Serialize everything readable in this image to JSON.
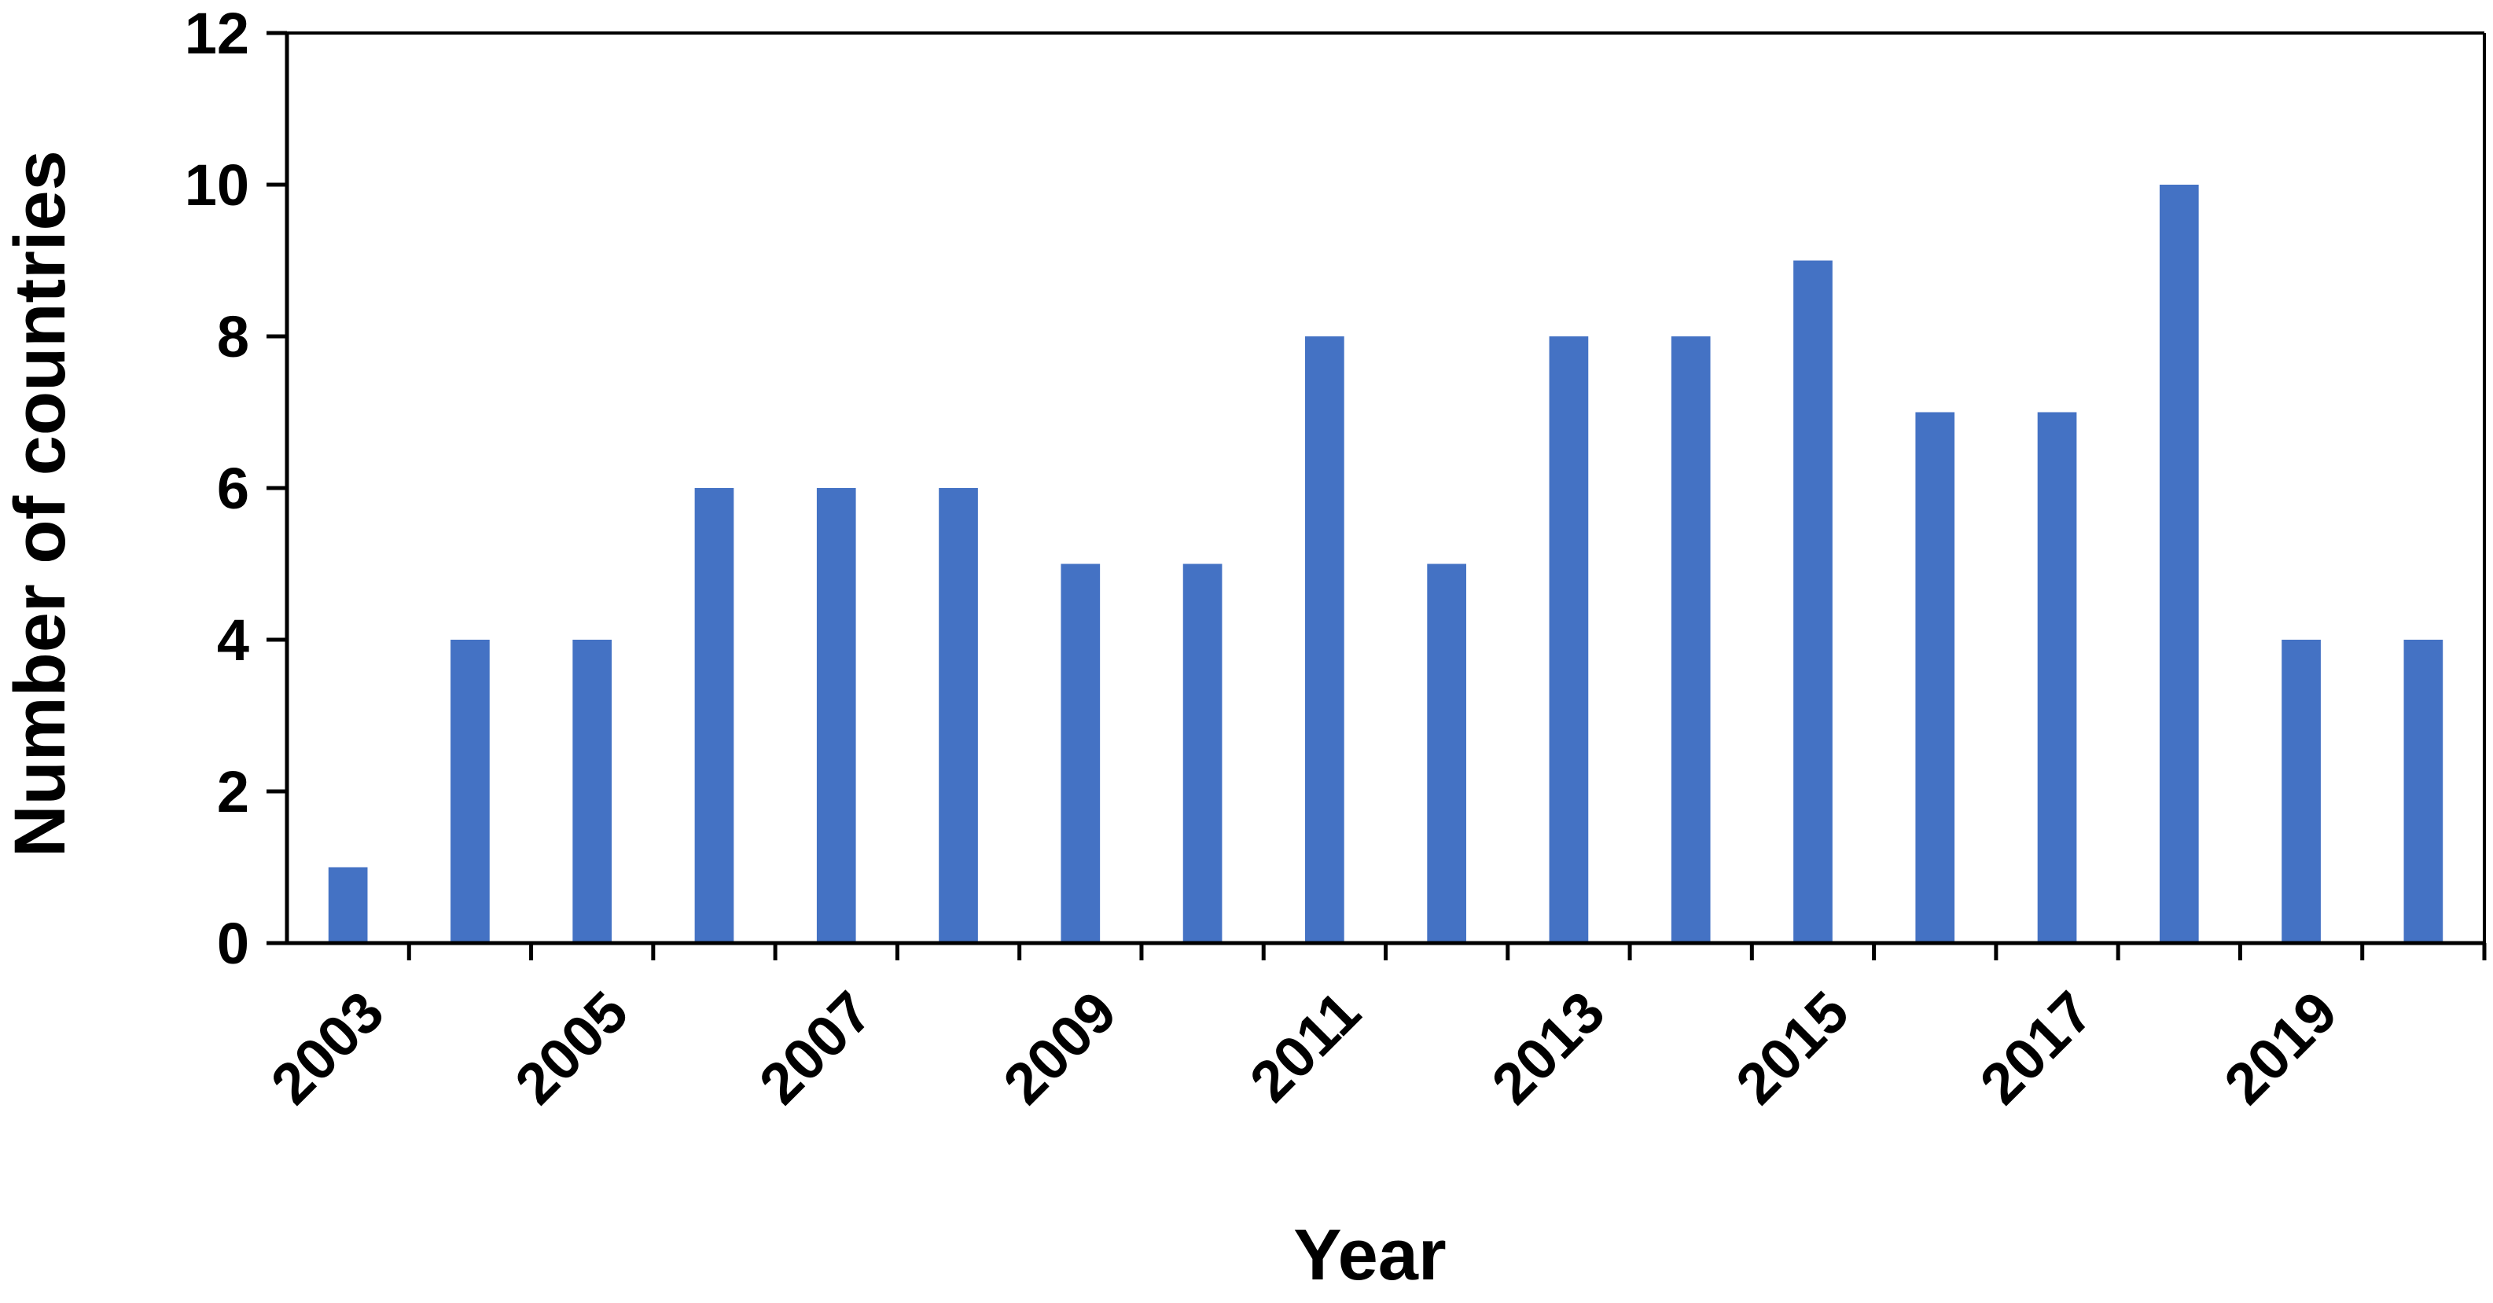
{
  "chart_data": {
    "type": "bar",
    "title": "",
    "xlabel": "Year",
    "ylabel": "Number of countries",
    "categories": [
      "2003",
      "2004",
      "2005",
      "2006",
      "2007",
      "2008",
      "2009",
      "2010",
      "2011",
      "2012",
      "2013",
      "2014",
      "2015",
      "2016",
      "2017",
      "2018",
      "2019",
      "2020"
    ],
    "x_tick_labels": [
      "2003",
      "2005",
      "2007",
      "2009",
      "2011",
      "2013",
      "2015",
      "2017",
      "2019"
    ],
    "values": [
      1,
      4,
      4,
      6,
      6,
      6,
      5,
      5,
      8,
      5,
      8,
      8,
      9,
      7,
      7,
      10,
      4,
      4
    ],
    "ylim": [
      0,
      12
    ],
    "yticks": [
      "0",
      "2",
      "4",
      "6",
      "8",
      "10",
      "12"
    ],
    "bar_color": "#4472C4",
    "grid": false,
    "legend": "none"
  }
}
